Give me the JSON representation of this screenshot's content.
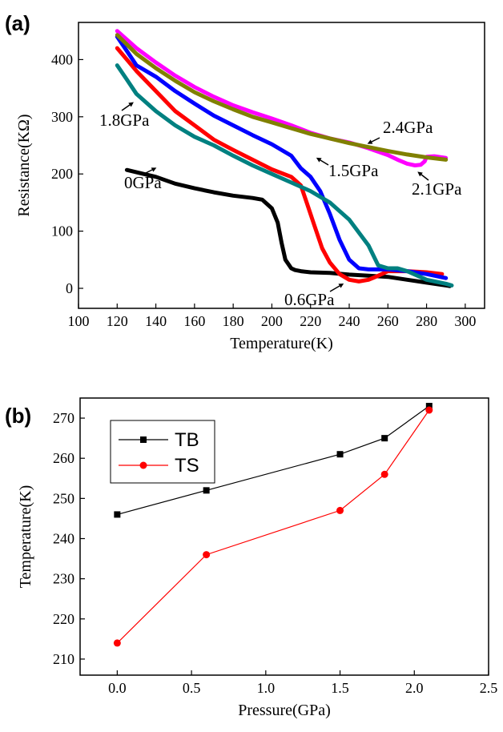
{
  "chart_data": [
    {
      "panel": "(a)",
      "type": "line",
      "xlabel": "Temperature(K)",
      "ylabel": "Resistance(KΩ)",
      "xlim": [
        100,
        310
      ],
      "ylim": [
        -35,
        465
      ],
      "xticks": [
        100,
        120,
        140,
        160,
        180,
        200,
        220,
        240,
        260,
        280,
        300
      ],
      "yticks": [
        0,
        100,
        200,
        300,
        400
      ],
      "grid": false,
      "series": [
        {
          "name": "0GPa",
          "color": "#000000",
          "x": [
            125,
            130,
            140,
            150,
            160,
            170,
            180,
            190,
            195,
            200,
            203,
            205,
            207,
            209,
            210,
            212,
            215,
            220,
            230,
            240,
            250,
            260,
            270,
            280,
            290,
            292
          ],
          "y": [
            207,
            203,
            195,
            183,
            175,
            168,
            162,
            158,
            155,
            140,
            115,
            80,
            50,
            40,
            35,
            32,
            30,
            28,
            27,
            24,
            22,
            20,
            15,
            10,
            5,
            4
          ]
        },
        {
          "name": "0.6GPa",
          "color": "#ff0000",
          "x": [
            120,
            125,
            130,
            140,
            150,
            160,
            170,
            180,
            190,
            200,
            210,
            215,
            218,
            222,
            226,
            230,
            235,
            240,
            245,
            250,
            255,
            260,
            265,
            270,
            280,
            288
          ],
          "y": [
            420,
            400,
            380,
            345,
            310,
            285,
            260,
            242,
            225,
            208,
            195,
            180,
            150,
            110,
            70,
            45,
            25,
            15,
            12,
            15,
            22,
            30,
            30,
            30,
            28,
            25
          ]
        },
        {
          "name": "1.5GPa",
          "color": "#0000ff",
          "x": [
            120,
            125,
            130,
            140,
            150,
            160,
            170,
            180,
            190,
            200,
            210,
            215,
            220,
            225,
            230,
            235,
            240,
            245,
            250,
            260,
            270,
            280,
            290
          ],
          "y": [
            440,
            415,
            390,
            370,
            345,
            323,
            302,
            285,
            268,
            252,
            232,
            210,
            195,
            170,
            130,
            85,
            50,
            35,
            33,
            33,
            30,
            25,
            18
          ]
        },
        {
          "name": "1.8GPa",
          "color": "#008080",
          "x": [
            120,
            125,
            130,
            140,
            150,
            160,
            170,
            180,
            190,
            200,
            210,
            220,
            230,
            240,
            250,
            255,
            260,
            265,
            270,
            280,
            290,
            293
          ],
          "y": [
            390,
            365,
            340,
            310,
            285,
            265,
            250,
            232,
            215,
            200,
            185,
            170,
            150,
            120,
            75,
            40,
            35,
            35,
            30,
            15,
            8,
            5
          ]
        },
        {
          "name": "2.1GPa",
          "color": "#ff00ff",
          "x": [
            120,
            130,
            140,
            150,
            160,
            170,
            180,
            190,
            200,
            210,
            220,
            230,
            240,
            250,
            260,
            265,
            270,
            274,
            277,
            279,
            280,
            284,
            290
          ],
          "y": [
            450,
            420,
            395,
            372,
            352,
            335,
            320,
            308,
            297,
            285,
            272,
            262,
            255,
            245,
            233,
            225,
            218,
            215,
            216,
            222,
            230,
            231,
            228
          ]
        },
        {
          "name": "2.4GPa",
          "color": "#808000",
          "x": [
            120,
            130,
            140,
            150,
            160,
            170,
            180,
            190,
            200,
            210,
            220,
            230,
            240,
            250,
            260,
            270,
            280,
            290
          ],
          "y": [
            443,
            410,
            385,
            363,
            343,
            327,
            313,
            300,
            290,
            280,
            270,
            262,
            254,
            247,
            240,
            234,
            229,
            225
          ]
        }
      ],
      "annotations": [
        "0GPa",
        "0.6GPa",
        "1.5GPa",
        "1.8GPa",
        "2.1GPa",
        "2.4GPa"
      ]
    },
    {
      "panel": "(b)",
      "type": "line",
      "xlabel": "Pressure(GPa)",
      "ylabel": "Temperature(K)",
      "xlim": [
        -0.25,
        2.5
      ],
      "ylim": [
        206,
        275
      ],
      "xticks": [
        "0.0",
        "0.5",
        "1.0",
        "1.5",
        "2.0",
        "2.5"
      ],
      "yticks": [
        210,
        220,
        230,
        240,
        250,
        260,
        270
      ],
      "grid": false,
      "legend": "top-left",
      "series": [
        {
          "name": "TB",
          "color": "#000000",
          "marker": "square",
          "x": [
            0,
            0.6,
            1.5,
            1.8,
            2.1
          ],
          "y": [
            246,
            252,
            261,
            265,
            273
          ]
        },
        {
          "name": "TS",
          "color": "#ff0000",
          "marker": "circle",
          "x": [
            0,
            0.6,
            1.5,
            1.8,
            2.1
          ],
          "y": [
            214,
            236,
            247,
            256,
            272
          ]
        }
      ]
    }
  ]
}
